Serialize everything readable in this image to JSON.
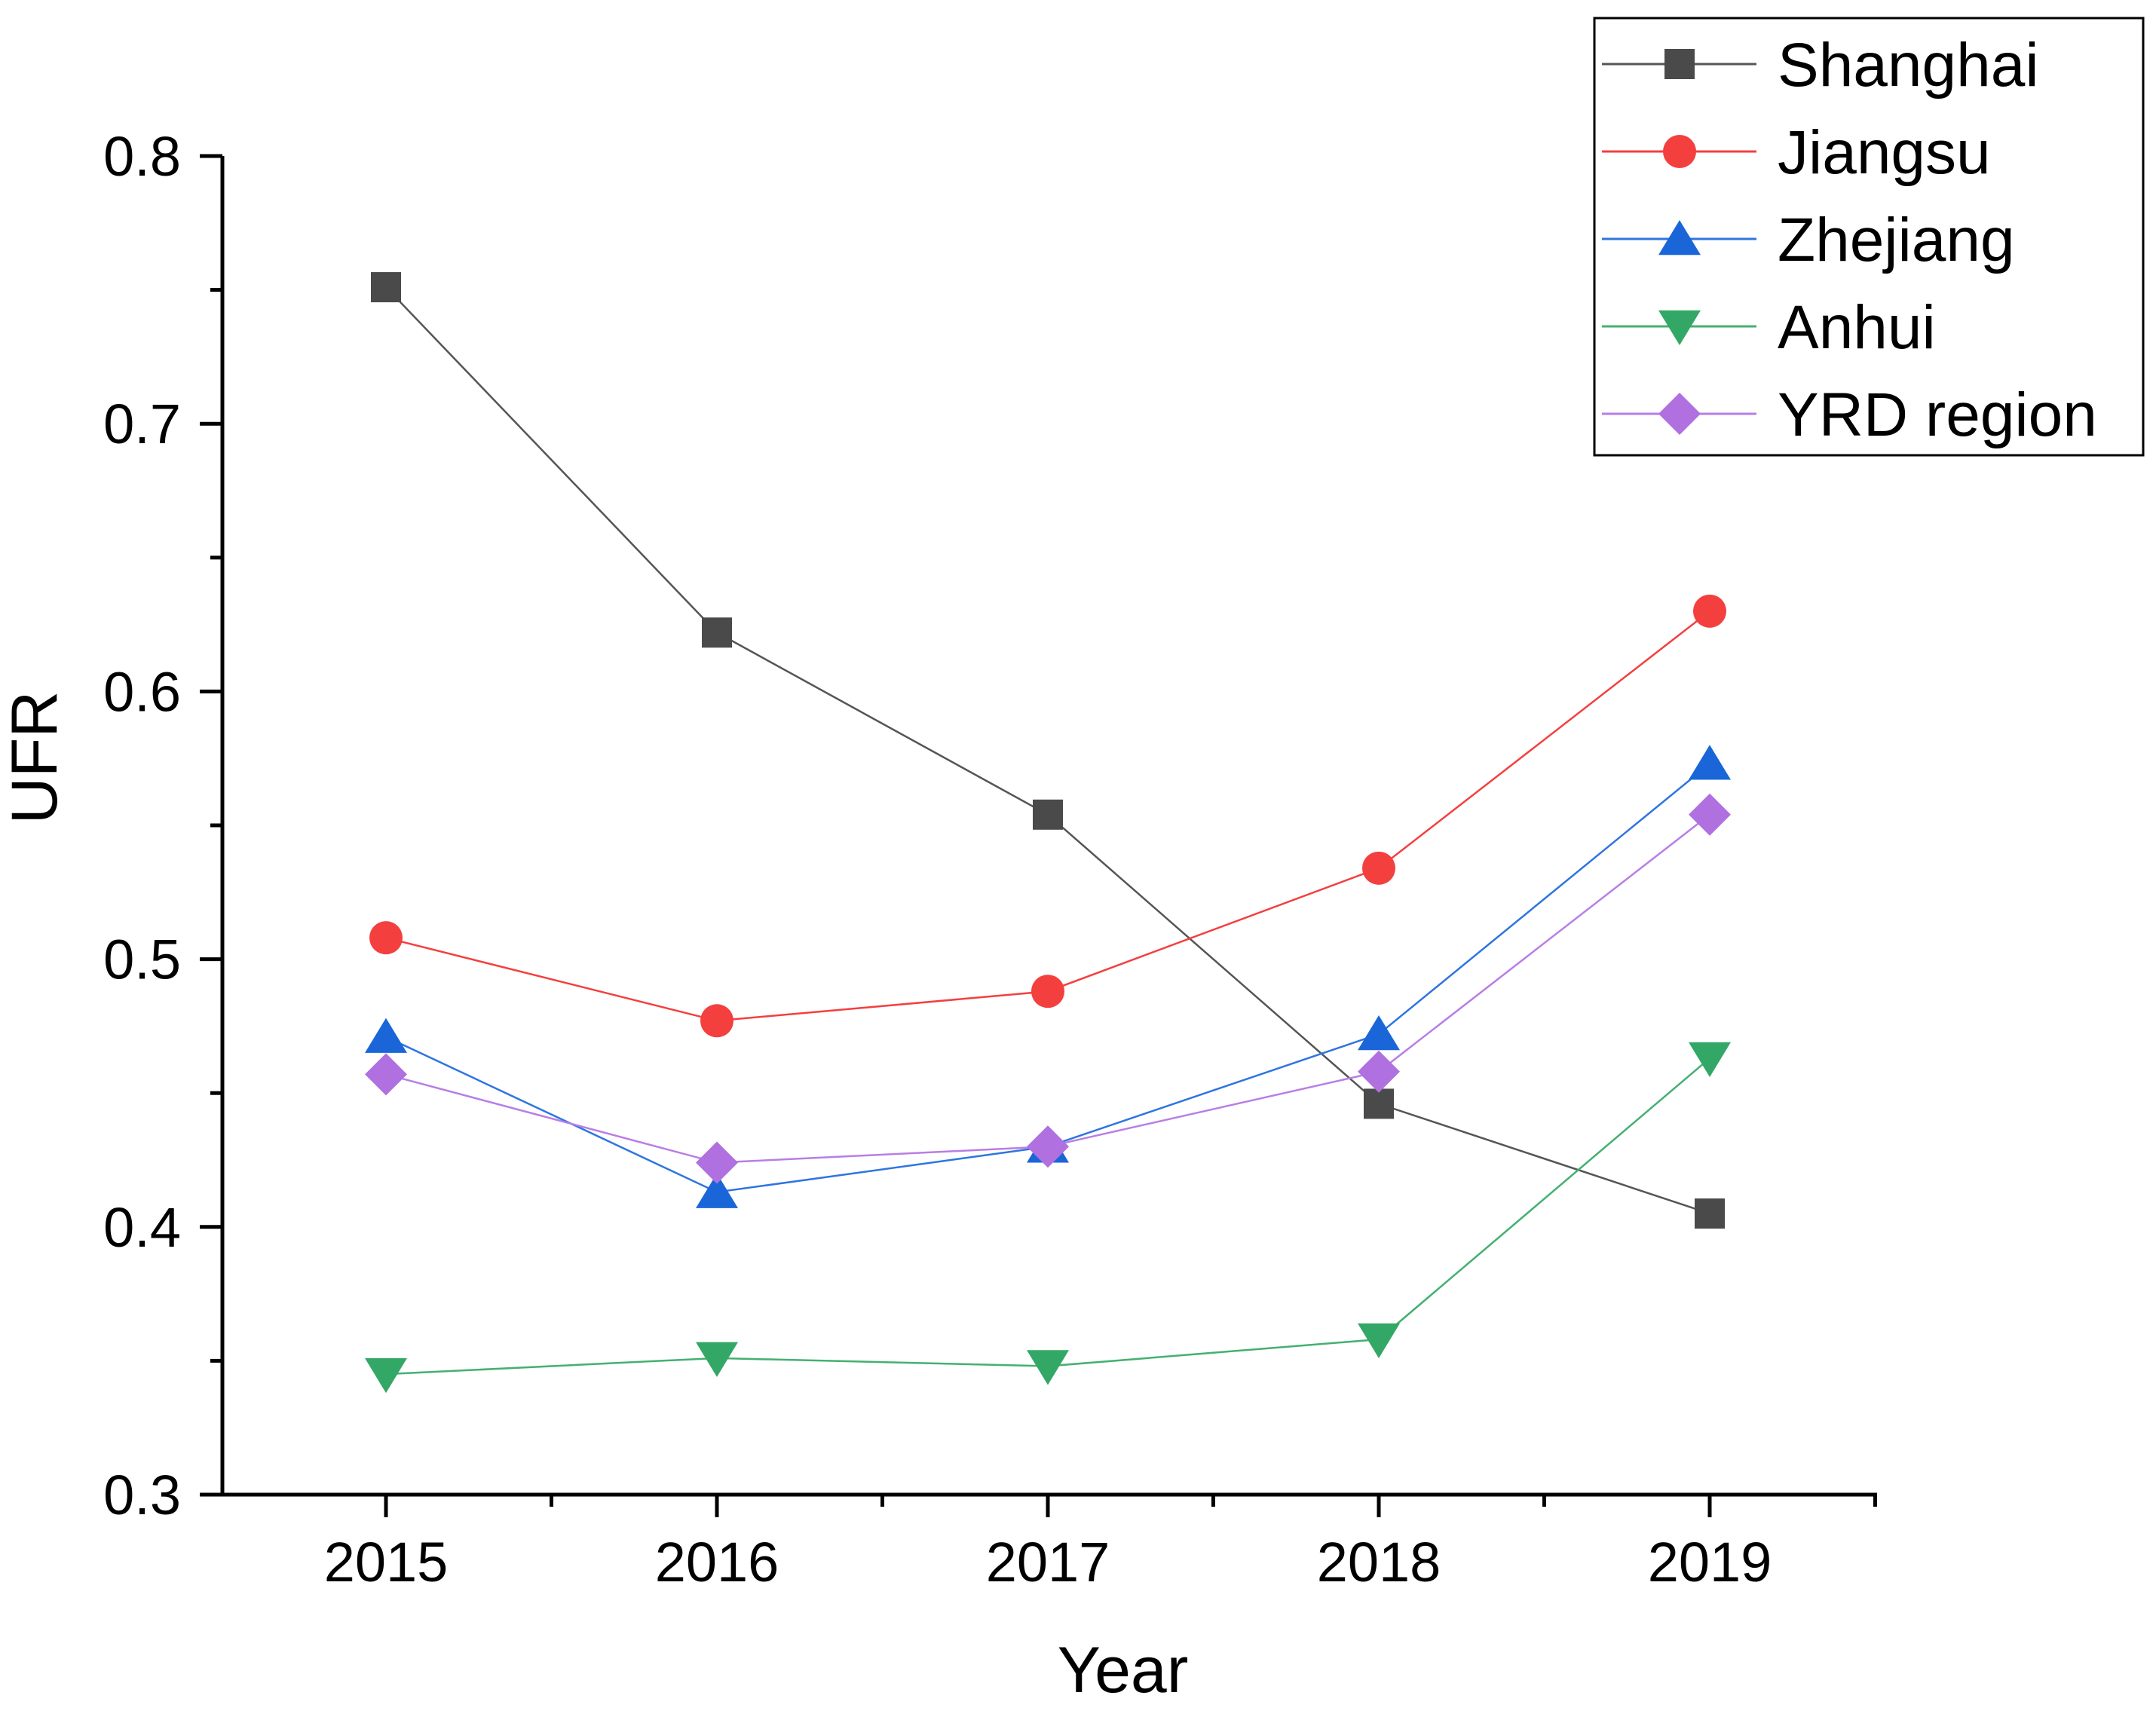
{
  "chart_data": {
    "type": "line",
    "title": "",
    "xlabel": "Year",
    "ylabel": "UFR",
    "categories": [
      "2015",
      "2016",
      "2017",
      "2018",
      "2019"
    ],
    "ylim": [
      0.3,
      0.8
    ],
    "yticks": [
      "0.3",
      "0.4",
      "0.5",
      "0.6",
      "0.7",
      "0.8"
    ],
    "grid": false,
    "legend_position": "top-right",
    "series": [
      {
        "name": "Shanghai",
        "marker": "square",
        "color": "#4a4a4a",
        "line_color": "#555555",
        "values": [
          0.751,
          0.622,
          0.554,
          0.446,
          0.405
        ]
      },
      {
        "name": "Jiangsu",
        "marker": "circle",
        "color": "#f43f3f",
        "line_color": "#f43f3f",
        "values": [
          0.508,
          0.477,
          0.488,
          0.534,
          0.63
        ]
      },
      {
        "name": "Zhejiang",
        "marker": "triangle-up",
        "color": "#1a66d9",
        "line_color": "#2e75e0",
        "values": [
          0.471,
          0.413,
          0.43,
          0.472,
          0.573
        ]
      },
      {
        "name": "Anhui",
        "marker": "triangle-down",
        "color": "#33a866",
        "line_color": "#44b070",
        "values": [
          0.345,
          0.351,
          0.348,
          0.358,
          0.463
        ]
      },
      {
        "name": "YRD region",
        "marker": "diamond",
        "color": "#b070e0",
        "line_color": "#b87ee6",
        "values": [
          0.457,
          0.424,
          0.43,
          0.458,
          0.554
        ]
      }
    ]
  }
}
